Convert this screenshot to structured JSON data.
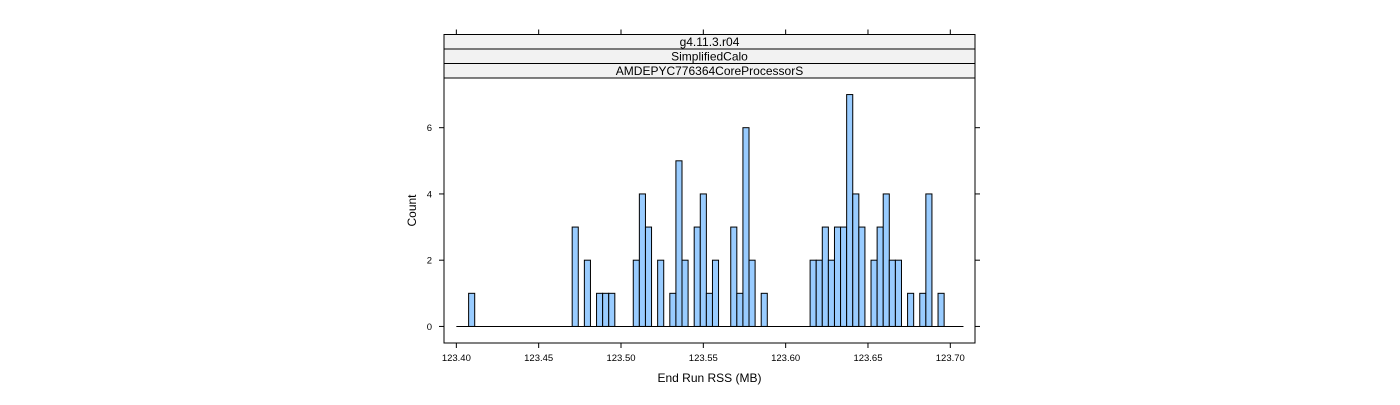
{
  "chart_data": {
    "type": "bar",
    "panel_strips": [
      "g4.11.3.r04",
      "SimplifiedCalo",
      "AMDEPYC776364CoreProcessorS"
    ],
    "xlabel": "End Run RSS (MB)",
    "ylabel": "Count",
    "x_ticks": [
      "123.40",
      "123.45",
      "123.50",
      "123.55",
      "123.60",
      "123.65",
      "123.70"
    ],
    "y_ticks": [
      "0",
      "2",
      "4",
      "6"
    ],
    "xlim": [
      123.3925,
      123.715
    ],
    "ylim": [
      -0.5,
      7.5
    ],
    "bin_width": 0.0037,
    "bins_start": 123.4,
    "bins_end": 123.708,
    "bars": [
      {
        "x": 123.4093,
        "count": 1
      },
      {
        "x": 123.4722,
        "count": 3
      },
      {
        "x": 123.4796,
        "count": 2
      },
      {
        "x": 123.487,
        "count": 1
      },
      {
        "x": 123.4907,
        "count": 1
      },
      {
        "x": 123.4944,
        "count": 1
      },
      {
        "x": 123.5093,
        "count": 2
      },
      {
        "x": 123.513,
        "count": 4
      },
      {
        "x": 123.5167,
        "count": 3
      },
      {
        "x": 123.5241,
        "count": 2
      },
      {
        "x": 123.5315,
        "count": 1
      },
      {
        "x": 123.5352,
        "count": 5
      },
      {
        "x": 123.5389,
        "count": 2
      },
      {
        "x": 123.5463,
        "count": 3
      },
      {
        "x": 123.55,
        "count": 4
      },
      {
        "x": 123.5537,
        "count": 1
      },
      {
        "x": 123.5574,
        "count": 2
      },
      {
        "x": 123.5685,
        "count": 3
      },
      {
        "x": 123.5722,
        "count": 1
      },
      {
        "x": 123.5759,
        "count": 6
      },
      {
        "x": 123.5796,
        "count": 2
      },
      {
        "x": 123.587,
        "count": 1
      },
      {
        "x": 123.6167,
        "count": 2
      },
      {
        "x": 123.6204,
        "count": 2
      },
      {
        "x": 123.6241,
        "count": 3
      },
      {
        "x": 123.6278,
        "count": 2
      },
      {
        "x": 123.6315,
        "count": 3
      },
      {
        "x": 123.6352,
        "count": 3
      },
      {
        "x": 123.6389,
        "count": 7
      },
      {
        "x": 123.6426,
        "count": 4
      },
      {
        "x": 123.6463,
        "count": 3
      },
      {
        "x": 123.6537,
        "count": 2
      },
      {
        "x": 123.6574,
        "count": 3
      },
      {
        "x": 123.6611,
        "count": 4
      },
      {
        "x": 123.6648,
        "count": 2
      },
      {
        "x": 123.6685,
        "count": 2
      },
      {
        "x": 123.6759,
        "count": 1
      },
      {
        "x": 123.6833,
        "count": 1
      },
      {
        "x": 123.687,
        "count": 4
      },
      {
        "x": 123.6944,
        "count": 1
      }
    ],
    "grid": false,
    "bar_fill": "#99ccff",
    "bar_stroke": "#000000",
    "strip_fill": "#f2f2f2"
  }
}
